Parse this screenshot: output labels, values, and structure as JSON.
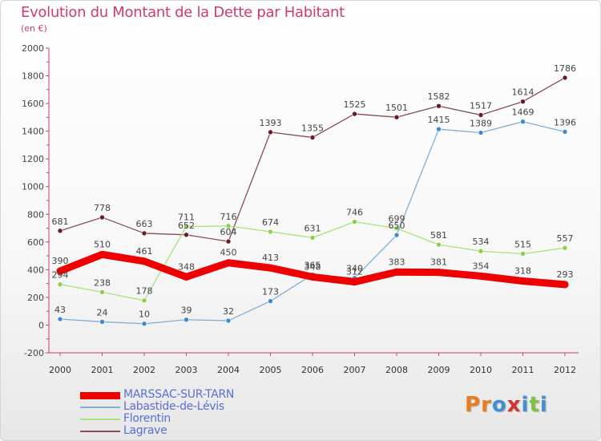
{
  "header": {
    "title": "Evolution du Montant de la Dette par Habitant",
    "unit": "(en €)"
  },
  "brand": {
    "letters": [
      {
        "char": "P",
        "color": "#e97c1f"
      },
      {
        "char": "r",
        "color": "#e97c1f"
      },
      {
        "char": "o",
        "color": "#3f8fd2"
      },
      {
        "char": "x",
        "color": "#d6332f"
      },
      {
        "char": "i",
        "color": "#3f8fd2"
      },
      {
        "char": "t",
        "color": "#7cc242"
      },
      {
        "char": "i",
        "color": "#3f8fd2"
      }
    ]
  },
  "chart_data": {
    "type": "line",
    "title": "Evolution du Montant de la Dette par Habitant",
    "ylabel": "(en €)",
    "xlabel": "",
    "x": [
      "2000",
      "2001",
      "2002",
      "2003",
      "2004",
      "2005",
      "2006",
      "2007",
      "2008",
      "2009",
      "2010",
      "2011",
      "2012"
    ],
    "ylim": [
      -200,
      2000
    ],
    "yticks": [
      "-200",
      "0",
      "200",
      "400",
      "600",
      "800",
      "1000",
      "1200",
      "1400",
      "1600",
      "1800",
      "2000"
    ],
    "grid": false,
    "legend_position": "bottom-left",
    "series": [
      {
        "name": "MARSSAC-SUR-TARN",
        "color": "#ee0000",
        "values": [
          390,
          510,
          461,
          348,
          450,
          413,
          348,
          312,
          383,
          381,
          354,
          318,
          293
        ],
        "labels": [
          "390",
          "510",
          "461",
          "348",
          "450",
          "413",
          "348",
          "312",
          "383",
          "381",
          "354",
          "318",
          "293"
        ]
      },
      {
        "name": "Labastide-de-Lévis",
        "color": "#7fafd6",
        "marker": "#3d8ad0",
        "values": [
          43,
          24,
          10,
          39,
          32,
          173,
          365,
          340,
          650,
          1415,
          1389,
          1469,
          1396
        ],
        "labels": [
          "43",
          "24",
          "10",
          "39",
          "32",
          "173",
          "365",
          "340",
          "650",
          "1415",
          "1389",
          "1469",
          "1396"
        ]
      },
      {
        "name": "Florentin",
        "color": "#a7e27a",
        "marker": "#8ad04f",
        "values": [
          294,
          238,
          178,
          711,
          716,
          674,
          631,
          746,
          699,
          581,
          534,
          515,
          557
        ],
        "labels": [
          "294",
          "238",
          "178",
          "711",
          "716",
          "674",
          "631",
          "746",
          "699",
          "581",
          "534",
          "515",
          "557"
        ]
      },
      {
        "name": "Lagrave",
        "color": "#8a4b55",
        "marker": "#6b1a25",
        "values": [
          681,
          778,
          663,
          652,
          604,
          1393,
          1355,
          1525,
          1501,
          1582,
          1517,
          1614,
          1786
        ],
        "labels": [
          "681",
          "778",
          "663",
          "652",
          "604",
          "1393",
          "1355",
          "1525",
          "1501",
          "1582",
          "1517",
          "1614",
          "1786"
        ]
      }
    ]
  }
}
